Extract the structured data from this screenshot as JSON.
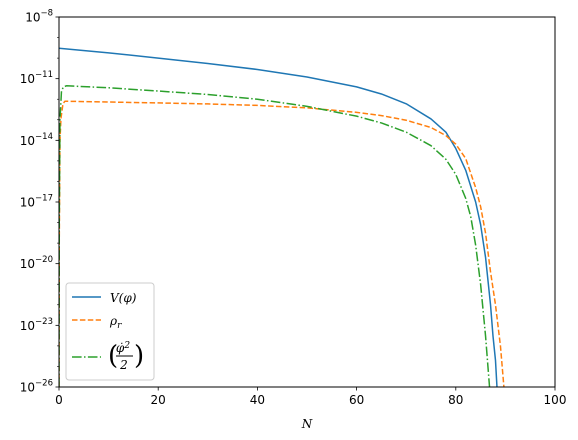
{
  "chart_data": {
    "type": "line",
    "title": "",
    "xlabel": "N",
    "ylabel": "",
    "xlim": [
      0,
      100
    ],
    "ylim": [
      1e-26,
      1e-08
    ],
    "yscale": "log",
    "grid": false,
    "legend_position": "lower-left",
    "x_ticks": [
      {
        "value": 0,
        "label": "0"
      },
      {
        "value": 20,
        "label": "20"
      },
      {
        "value": 40,
        "label": "40"
      },
      {
        "value": 60,
        "label": "60"
      },
      {
        "value": 80,
        "label": "80"
      },
      {
        "value": 100,
        "label": "100"
      }
    ],
    "y_ticks": [
      {
        "exp": -26,
        "base": "10",
        "sup": "−26"
      },
      {
        "exp": -23,
        "base": "10",
        "sup": "−23"
      },
      {
        "exp": -20,
        "base": "10",
        "sup": "−20"
      },
      {
        "exp": -17,
        "base": "10",
        "sup": "−17"
      },
      {
        "exp": -14,
        "base": "10",
        "sup": "−14"
      },
      {
        "exp": -11,
        "base": "10",
        "sup": "−11"
      },
      {
        "exp": -8,
        "base": "10",
        "sup": "−8"
      }
    ],
    "series": [
      {
        "name": "V(φ)",
        "color": "#1f77b4",
        "dash": "solid",
        "points": [
          [
            0,
            3e-10
          ],
          [
            10,
            1.8e-10
          ],
          [
            20,
            1e-10
          ],
          [
            30,
            5.5e-11
          ],
          [
            40,
            2.8e-11
          ],
          [
            50,
            1.2e-11
          ],
          [
            60,
            4e-12
          ],
          [
            65,
            1.8e-12
          ],
          [
            70,
            6e-13
          ],
          [
            75,
            1.1e-13
          ],
          [
            78,
            2.5e-14
          ],
          [
            80,
            4e-15
          ],
          [
            82,
            3.5e-16
          ],
          [
            84,
            1e-17
          ],
          [
            85,
            8e-19
          ],
          [
            86,
            2e-20
          ],
          [
            87,
            1e-22
          ],
          [
            87.5,
            3e-24
          ],
          [
            88,
            2e-25
          ],
          [
            88.3,
            1e-26
          ]
        ]
      },
      {
        "name": "ρ_r",
        "color": "#ff7f0e",
        "dash": "dashed",
        "points": [
          [
            0,
            1e-26
          ],
          [
            0.05,
            1e-19
          ],
          [
            0.2,
            1e-14
          ],
          [
            0.4,
            1.2e-13
          ],
          [
            0.8,
            6e-13
          ],
          [
            1.2,
            8e-13
          ],
          [
            10,
            7.3e-13
          ],
          [
            20,
            6.6e-13
          ],
          [
            30,
            5.9e-13
          ],
          [
            40,
            5e-13
          ],
          [
            50,
            3.8e-13
          ],
          [
            60,
            2.3e-13
          ],
          [
            65,
            1.6e-13
          ],
          [
            70,
            9.5e-14
          ],
          [
            75,
            4.2e-14
          ],
          [
            78,
            1.7e-14
          ],
          [
            80,
            6.5e-15
          ],
          [
            82,
            1.3e-15
          ],
          [
            84,
            5e-17
          ],
          [
            85,
            6e-18
          ],
          [
            86,
            3e-19
          ],
          [
            87,
            4e-21
          ],
          [
            88,
            1e-22
          ],
          [
            89,
            1e-24
          ],
          [
            89.7,
            1e-26
          ]
        ]
      },
      {
        "name": "(φ̇²/2)",
        "color": "#2ca02c",
        "dash": "dashdot",
        "points": [
          [
            0,
            1e-26
          ],
          [
            0.05,
            1e-18
          ],
          [
            0.2,
            1e-13
          ],
          [
            0.5,
            2.5e-12
          ],
          [
            0.9,
            4e-12
          ],
          [
            1.5,
            4.5e-12
          ],
          [
            10,
            3.6e-12
          ],
          [
            20,
            2.5e-12
          ],
          [
            30,
            1.7e-12
          ],
          [
            40,
            1e-12
          ],
          [
            50,
            4.5e-13
          ],
          [
            60,
            1.5e-13
          ],
          [
            65,
            7e-14
          ],
          [
            70,
            2.5e-14
          ],
          [
            75,
            5.5e-15
          ],
          [
            78,
            1.2e-15
          ],
          [
            80,
            2.2e-16
          ],
          [
            82,
            1.5e-17
          ],
          [
            83,
            2e-18
          ],
          [
            84,
            8e-20
          ],
          [
            85,
            1e-21
          ],
          [
            86,
            3e-24
          ],
          [
            86.8,
            1e-26
          ]
        ]
      }
    ],
    "legend": [
      {
        "key": "v",
        "label_html": "V(φ)"
      },
      {
        "key": "rho",
        "label_html": "ρr"
      },
      {
        "key": "kin",
        "label_html": "(φ̇²/2)"
      }
    ]
  }
}
